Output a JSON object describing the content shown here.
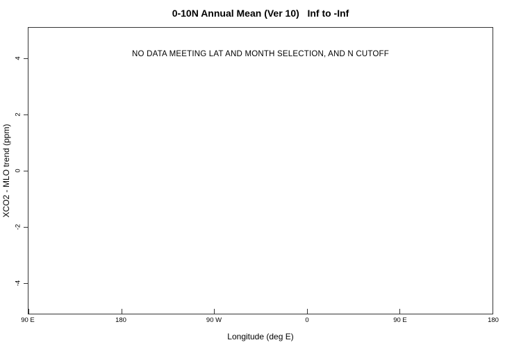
{
  "page": {
    "background_color": "#ffffff",
    "text_color": "#000000",
    "axis_color": "#333333"
  },
  "chart_data": {
    "type": "scatter",
    "title": "0-10N Annual Mean (Ver 10)   Inf to -Inf",
    "xlabel": "Longitude (deg E)",
    "ylabel": "XCO2 - MLO trend (ppm)",
    "annotation": "NO DATA MEETING LAT AND MONTH SELECTION, AND N CUTOFF",
    "x_tick_labels": [
      "90 E",
      "180",
      "90 W",
      "0",
      "90 E",
      "180"
    ],
    "y_tick_values": [
      -4,
      -2,
      0,
      2,
      4
    ],
    "y_tick_labels": [
      "-4",
      "-2",
      "0",
      "2",
      "4"
    ],
    "ylim": [
      -5.1,
      5.1
    ],
    "series": [],
    "grid": false,
    "legend": "none"
  }
}
